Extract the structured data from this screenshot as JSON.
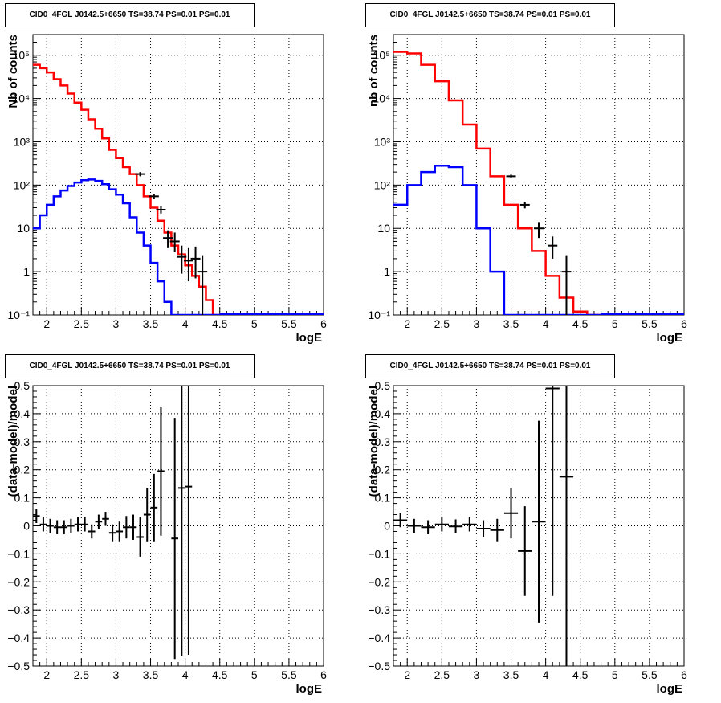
{
  "chart_data": [
    {
      "type": "line",
      "title": "CID0_4FGL J0142.5+6650 TS=38.74 PS=0.01 PS=0.01",
      "xlabel": "logE",
      "ylabel": "Nb of counts",
      "yscale": "log",
      "xlim": [
        1.8,
        6
      ],
      "ylim": [
        0.1,
        300000
      ],
      "grid": true,
      "x_ticks": [
        "2",
        "2.5",
        "3",
        "3.5",
        "4",
        "4.5",
        "5",
        "5.5",
        "6"
      ],
      "y_ticks": [
        "10⁻¹",
        "1",
        "10",
        "10²",
        "10³",
        "10⁴",
        "10⁵"
      ],
      "bin_edges": [
        1.8,
        1.9,
        2.0,
        2.1,
        2.2,
        2.3,
        2.4,
        2.5,
        2.6,
        2.7,
        2.8,
        2.9,
        3.0,
        3.1,
        3.2,
        3.3,
        3.4,
        3.5,
        3.6,
        3.7,
        3.8,
        3.9,
        4.0,
        4.1,
        4.2,
        4.3,
        4.4,
        4.5
      ],
      "series": [
        {
          "color": "#ff0000",
          "values": [
            60000,
            50000,
            40000,
            28000,
            20000,
            13000,
            8000,
            5500,
            3300,
            2000,
            1200,
            650,
            420,
            260,
            180,
            100,
            55,
            30,
            15,
            8,
            4,
            2.5,
            1.4,
            0.8,
            0.45,
            0.22,
            0.1
          ]
        },
        {
          "color": "#0000ff",
          "values": [
            10,
            20,
            35,
            55,
            75,
            95,
            115,
            130,
            135,
            125,
            105,
            80,
            60,
            38,
            18,
            8,
            4,
            1.6,
            0.6,
            0.2,
            0.08,
            0.08,
            0.08,
            0.08,
            0.08,
            0.08,
            0.08
          ]
        }
      ],
      "flat_tail": {
        "color": "#0000ff",
        "from": 4.5,
        "to": 6.0,
        "value": 0.1
      },
      "data_points": [
        {
          "x": 3.35,
          "y": 180,
          "lo": 160,
          "hi": 200
        },
        {
          "x": 3.55,
          "y": 55,
          "lo": 47,
          "hi": 63
        },
        {
          "x": 3.65,
          "y": 27,
          "lo": 22,
          "hi": 33
        },
        {
          "x": 3.75,
          "y": 6,
          "lo": 3.5,
          "hi": 9
        },
        {
          "x": 3.85,
          "y": 5,
          "lo": 2.8,
          "hi": 8
        },
        {
          "x": 3.95,
          "y": 2.2,
          "lo": 0.9,
          "hi": 4
        },
        {
          "x": 4.05,
          "y": 1.8,
          "lo": 0.6,
          "hi": 3.5
        },
        {
          "x": 4.15,
          "y": 2,
          "lo": 0.7,
          "hi": 3.8
        },
        {
          "x": 4.25,
          "y": 1,
          "lo": 0.1,
          "hi": 2.3
        }
      ]
    },
    {
      "type": "line",
      "title": "CID0_4FGL J0142.5+6650 TS=38.74 PS=0.01 PS=0.01",
      "xlabel": "logE",
      "ylabel": "nb of counts",
      "yscale": "log",
      "xlim": [
        1.8,
        6
      ],
      "ylim": [
        0.1,
        300000
      ],
      "grid": true,
      "x_ticks": [
        "2",
        "2.5",
        "3",
        "3.5",
        "4",
        "4.5",
        "5",
        "5.5",
        "6"
      ],
      "y_ticks": [
        "10⁻¹",
        "1",
        "10",
        "10²",
        "10³",
        "10⁴",
        "10⁵"
      ],
      "bin_edges": [
        1.8,
        2.0,
        2.2,
        2.4,
        2.6,
        2.8,
        3.0,
        3.2,
        3.4,
        3.6,
        3.8,
        4.0,
        4.2,
        4.4,
        4.6,
        4.8
      ],
      "series": [
        {
          "color": "#ff0000",
          "values": [
            120000,
            110000,
            60000,
            25000,
            9000,
            2500,
            700,
            160,
            35,
            10,
            3,
            0.8,
            0.25,
            0.12,
            0.1
          ]
        },
        {
          "color": "#0000ff",
          "values": [
            35,
            100,
            200,
            280,
            260,
            100,
            10,
            1,
            0.1,
            0.08,
            0.08,
            0.08,
            0.08,
            0.08,
            0.08
          ]
        }
      ],
      "flat_tail": {
        "color": "#0000ff",
        "from": 4.8,
        "to": 6.0,
        "value": 0.1
      },
      "data_points": [
        {
          "x": 3.5,
          "y": 160,
          "lo": 150,
          "hi": 175
        },
        {
          "x": 3.7,
          "y": 35,
          "lo": 29,
          "hi": 41
        },
        {
          "x": 3.9,
          "y": 10,
          "lo": 6,
          "hi": 14
        },
        {
          "x": 4.1,
          "y": 4,
          "lo": 2,
          "hi": 6.5
        },
        {
          "x": 4.3,
          "y": 1,
          "lo": 0.1,
          "hi": 2.3
        }
      ]
    },
    {
      "type": "scatter",
      "title": "CID0_4FGL J0142.5+6650 TS=38.74 PS=0.01 PS=0.01",
      "xlabel": "logE",
      "ylabel": "(data-model)/model",
      "xlim": [
        1.8,
        6
      ],
      "ylim": [
        -0.5,
        0.5
      ],
      "grid": true,
      "x_ticks": [
        "2",
        "2.5",
        "3",
        "3.5",
        "4",
        "4.5",
        "5",
        "5.5",
        "6"
      ],
      "y_ticks": [
        "−0.5",
        "−0.4",
        "−0.3",
        "−0.2",
        "−0.1",
        "0",
        "0.1",
        "0.2",
        "0.3",
        "0.4",
        "0.5"
      ],
      "points": [
        {
          "x": 1.85,
          "y": 0.035,
          "err": 0.025,
          "xerr": 0.05
        },
        {
          "x": 1.95,
          "y": 0.005,
          "err": 0.025,
          "xerr": 0.05
        },
        {
          "x": 2.05,
          "y": 0.0,
          "err": 0.025,
          "xerr": 0.05
        },
        {
          "x": 2.15,
          "y": -0.005,
          "err": 0.025,
          "xerr": 0.05
        },
        {
          "x": 2.25,
          "y": -0.005,
          "err": 0.025,
          "xerr": 0.05
        },
        {
          "x": 2.35,
          "y": 0.0,
          "err": 0.025,
          "xerr": 0.05
        },
        {
          "x": 2.45,
          "y": 0.005,
          "err": 0.025,
          "xerr": 0.05
        },
        {
          "x": 2.55,
          "y": 0.005,
          "err": 0.025,
          "xerr": 0.05
        },
        {
          "x": 2.65,
          "y": -0.02,
          "err": 0.025,
          "xerr": 0.05
        },
        {
          "x": 2.75,
          "y": 0.015,
          "err": 0.025,
          "xerr": 0.05
        },
        {
          "x": 2.85,
          "y": 0.025,
          "err": 0.025,
          "xerr": 0.05
        },
        {
          "x": 2.95,
          "y": -0.025,
          "err": 0.03,
          "xerr": 0.05
        },
        {
          "x": 3.05,
          "y": -0.02,
          "err": 0.035,
          "xerr": 0.05
        },
        {
          "x": 3.15,
          "y": -0.005,
          "err": 0.04,
          "xerr": 0.05
        },
        {
          "x": 3.25,
          "y": -0.005,
          "err": 0.045,
          "xerr": 0.05
        },
        {
          "x": 3.35,
          "y": -0.04,
          "err": 0.07,
          "xerr": 0.05
        },
        {
          "x": 3.45,
          "y": 0.04,
          "err": 0.095,
          "xerr": 0.05
        },
        {
          "x": 3.55,
          "y": 0.065,
          "err": 0.12,
          "xerr": 0.05
        },
        {
          "x": 3.65,
          "y": 0.195,
          "err": 0.23,
          "xerr": 0.05
        },
        {
          "x": 3.85,
          "y": -0.045,
          "err": 0.43,
          "xerr": 0.05
        },
        {
          "x": 3.95,
          "y": 0.135,
          "err": 0.6,
          "xerr": 0.05
        },
        {
          "x": 4.05,
          "y": 0.14,
          "err": 0.6,
          "xerr": 0.05
        }
      ]
    },
    {
      "type": "scatter",
      "title": "CID0_4FGL J0142.5+6650 TS=38.74 PS=0.01 PS=0.01",
      "xlabel": "logE",
      "ylabel": "(data-model)/model",
      "xlim": [
        1.8,
        6
      ],
      "ylim": [
        -0.5,
        0.5
      ],
      "grid": true,
      "x_ticks": [
        "2",
        "2.5",
        "3",
        "3.5",
        "4",
        "4.5",
        "5",
        "5.5",
        "6"
      ],
      "y_ticks": [
        "−0.5",
        "−0.4",
        "−0.3",
        "−0.2",
        "−0.1",
        "0",
        "0.1",
        "0.2",
        "0.3",
        "0.4",
        "0.5"
      ],
      "points": [
        {
          "x": 1.9,
          "y": 0.02,
          "err": 0.025,
          "xerr": 0.1
        },
        {
          "x": 2.1,
          "y": 0.0,
          "err": 0.025,
          "xerr": 0.1
        },
        {
          "x": 2.3,
          "y": -0.005,
          "err": 0.025,
          "xerr": 0.1
        },
        {
          "x": 2.5,
          "y": 0.005,
          "err": 0.025,
          "xerr": 0.1
        },
        {
          "x": 2.7,
          "y": -0.002,
          "err": 0.025,
          "xerr": 0.1
        },
        {
          "x": 2.9,
          "y": 0.005,
          "err": 0.025,
          "xerr": 0.1
        },
        {
          "x": 3.1,
          "y": -0.01,
          "err": 0.03,
          "xerr": 0.1
        },
        {
          "x": 3.3,
          "y": -0.015,
          "err": 0.04,
          "xerr": 0.1
        },
        {
          "x": 3.5,
          "y": 0.045,
          "err": 0.09,
          "xerr": 0.1
        },
        {
          "x": 3.7,
          "y": -0.09,
          "err": 0.16,
          "xerr": 0.1
        },
        {
          "x": 3.9,
          "y": 0.015,
          "err": 0.36,
          "xerr": 0.1
        },
        {
          "x": 4.1,
          "y": 0.49,
          "err": 0.74,
          "xerr": 0.1
        },
        {
          "x": 4.3,
          "y": 0.175,
          "err": 0.8,
          "xerr": 0.1
        }
      ]
    }
  ]
}
